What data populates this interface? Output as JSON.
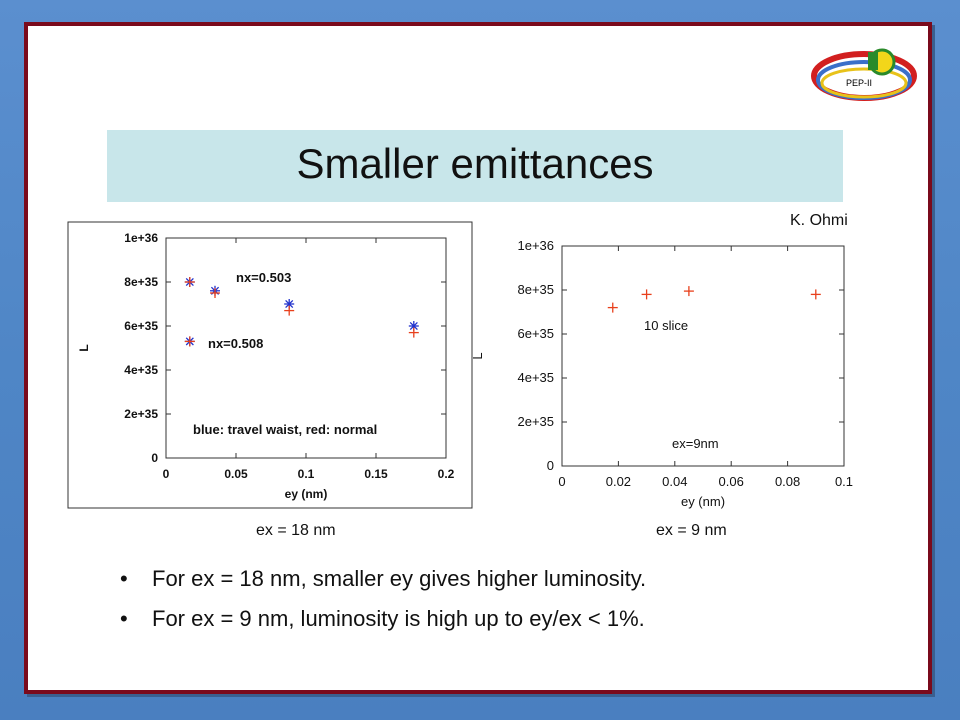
{
  "slide": {
    "title": "Smaller emittances",
    "author": "K. Ohmi",
    "logo_text": "PEP-II",
    "left_caption": "ex = 18 nm",
    "right_caption": "ex = 9 nm",
    "bullets": [
      "For ex = 18 nm, smaller ey gives higher luminosity.",
      "For ex = 9 nm, luminosity is high up to ey/ex < 1%."
    ]
  },
  "colors": {
    "border": "#7a0a1c",
    "title_band": "#c8e6ea",
    "blue_marker": "#2233cc",
    "red_marker": "#e8401c"
  },
  "chart_data": [
    {
      "type": "scatter",
      "xlabel": "ey (nm)",
      "ylabel": "L",
      "xlim": [
        0,
        0.2
      ],
      "ylim": [
        0,
        1e+36
      ],
      "x_ticks": [
        "0",
        "0.05",
        "0.1",
        "0.15",
        "0.2"
      ],
      "y_ticks": [
        "0",
        "2e+35",
        "4e+35",
        "6e+35",
        "8e+35",
        "1e+36"
      ],
      "annotations": [
        "nx=0.503",
        "nx=0.508",
        "blue: travel waist, red: normal"
      ],
      "series": [
        {
          "marker": "asterisk",
          "color": "#2233cc",
          "points": [
            [
              0.017,
              8e+35
            ],
            [
              0.017,
              5.3e+35
            ],
            [
              0.035,
              7.6e+35
            ],
            [
              0.088,
              7e+35
            ],
            [
              0.177,
              6e+35
            ]
          ]
        },
        {
          "marker": "plus",
          "color": "#e8401c",
          "points": [
            [
              0.017,
              8e+35
            ],
            [
              0.017,
              5.3e+35
            ],
            [
              0.035,
              7.5e+35
            ],
            [
              0.088,
              6.7e+35
            ],
            [
              0.177,
              5.7e+35
            ]
          ]
        }
      ]
    },
    {
      "type": "scatter",
      "xlabel": "ey (nm)",
      "ylabel": "L",
      "xlim": [
        0,
        0.1
      ],
      "ylim": [
        0,
        1e+36
      ],
      "x_ticks": [
        "0",
        "0.02",
        "0.04",
        "0.06",
        "0.08",
        "0.1"
      ],
      "y_ticks": [
        "0",
        "2e+35",
        "4e+35",
        "6e+35",
        "8e+35",
        "1e+36"
      ],
      "annotations": [
        "10 slice",
        "ex=9nm"
      ],
      "series": [
        {
          "marker": "plus",
          "color": "#e8401c",
          "points": [
            [
              0.018,
              7.2e+35
            ],
            [
              0.03,
              7.8e+35
            ],
            [
              0.045,
              7.95e+35
            ],
            [
              0.09,
              7.8e+35
            ]
          ]
        }
      ]
    }
  ]
}
